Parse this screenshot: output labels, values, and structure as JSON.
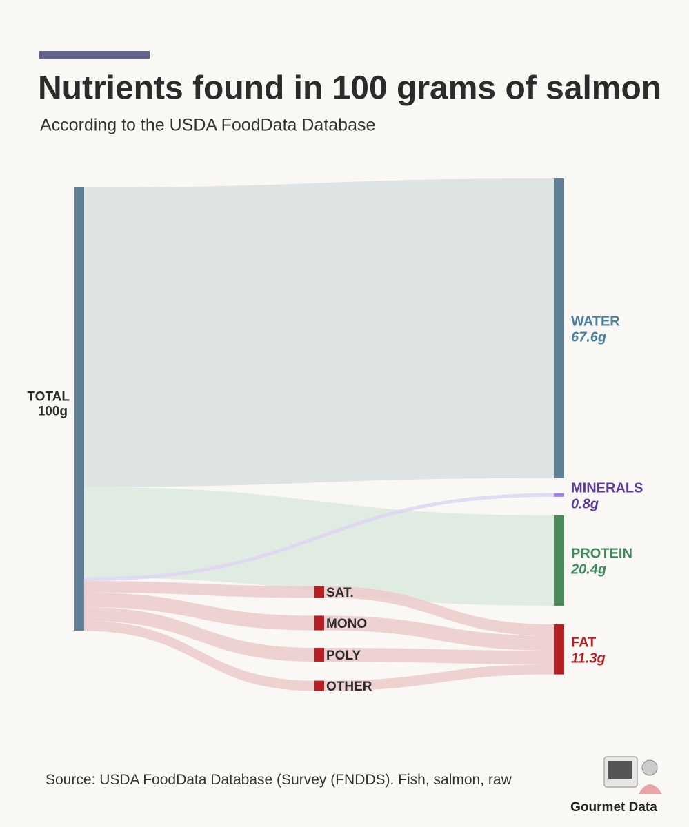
{
  "chart_data": {
    "type": "sankey",
    "title": "Nutrients found in 100 grams of salmon",
    "subtitle": "According to the USDA FoodData Database",
    "source": "Source: USDA FoodData Database (Survey (FNDDS). Fish, salmon, raw",
    "credit": "Gourmet Data",
    "total": {
      "name": "TOTAL",
      "value": 100,
      "value_label": "100g",
      "color": "#5f8097"
    },
    "targets": {
      "names": [
        "WATER",
        "MINERALS",
        "PROTEIN",
        "FAT"
      ],
      "values": [
        67.6,
        0.8,
        20.4,
        11.3
      ],
      "value_labels": [
        "67.6g",
        "0.8g",
        "20.4g",
        "11.3g"
      ],
      "colors": [
        "#5f8097",
        "#9b7fe3",
        "#4b8a5c",
        "#b52025"
      ],
      "label_colors": [
        "#4a7f9e",
        "#5b3a9e",
        "#3f8a5c",
        "#b52025"
      ],
      "link_colors": [
        "#d9dfe0",
        "#ddd6f3",
        "#dce9dd",
        "#eccbcb"
      ]
    },
    "fat_breakdown": {
      "names": [
        "SAT.",
        "MONO",
        "POLY",
        "OTHER"
      ],
      "values": [
        2.6,
        3.3,
        3.1,
        2.3
      ],
      "color": "#b52025"
    }
  }
}
